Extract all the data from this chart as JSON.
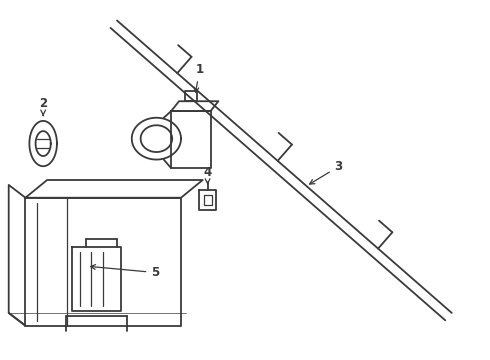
{
  "bg_color": "#ffffff",
  "line_color": "#3a3a3a",
  "lw": 1.3,
  "thin_lw": 0.9
}
